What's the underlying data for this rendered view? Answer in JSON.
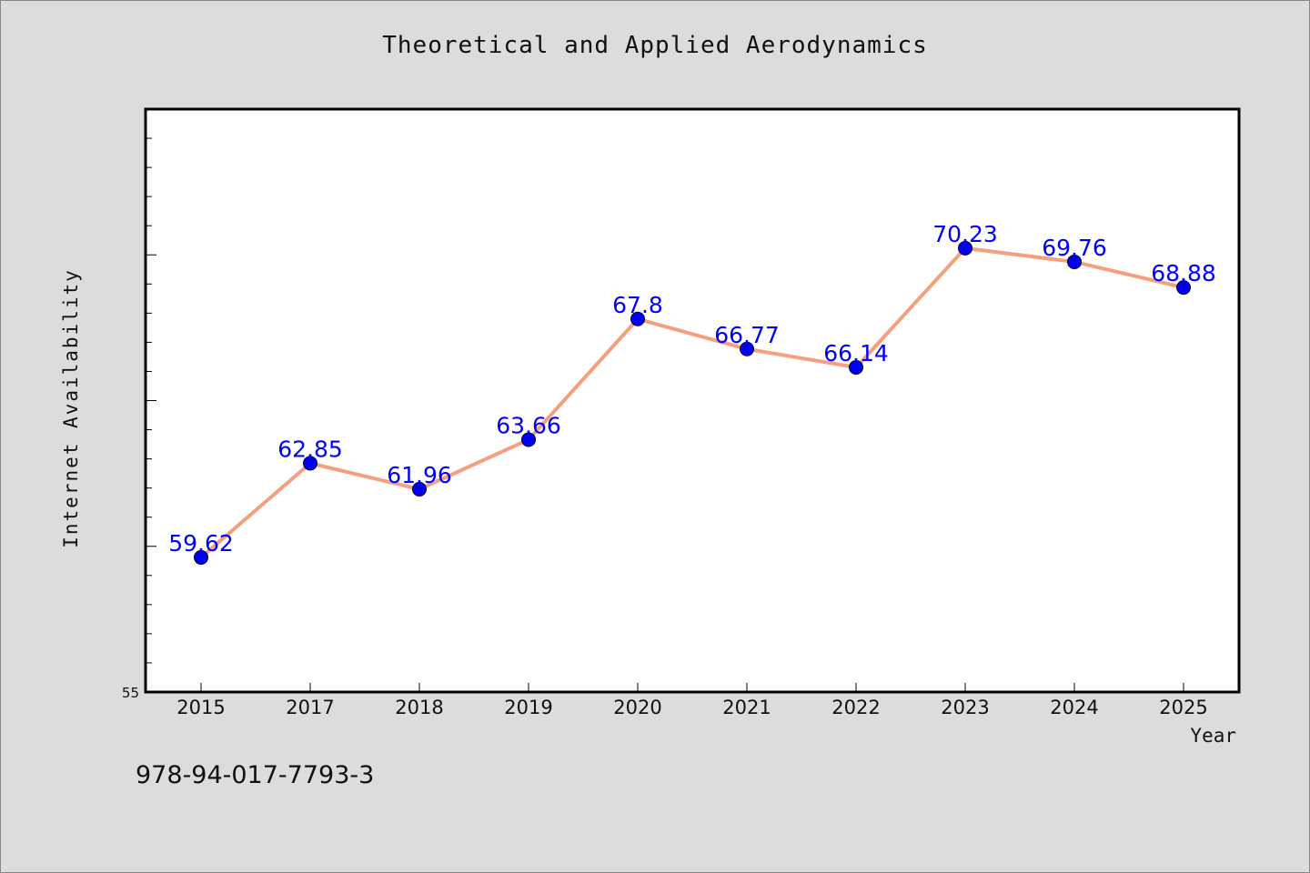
{
  "chart_data": {
    "type": "line",
    "title": "Theoretical and Applied Aerodynamics",
    "xlabel": "Year",
    "ylabel": "Internet Availability",
    "categories": [
      "2015",
      "2017",
      "2018",
      "2019",
      "2020",
      "2021",
      "2022",
      "2023",
      "2024",
      "2025"
    ],
    "series": [
      {
        "values": [
          59.62,
          62.85,
          61.96,
          63.66,
          67.8,
          66.77,
          66.14,
          70.23,
          69.76,
          68.88
        ],
        "labels": [
          "59.62",
          "62.85",
          "61.96",
          "63.66",
          "67.8",
          "66.77",
          "66.14",
          "70.23",
          "69.76",
          "68.88"
        ],
        "line_color": "#f4a07e",
        "marker_color": "#0000ee",
        "label_color": "#0000ff"
      }
    ],
    "ylim": [
      55,
      75
    ],
    "y_tick_labels": [
      "55"
    ],
    "grid": false,
    "legend": "none"
  },
  "footer": {
    "isbn": "978-94-017-7793-3"
  },
  "colors": {
    "background": "#dcdcdc",
    "plot_area": "#ffffff"
  }
}
